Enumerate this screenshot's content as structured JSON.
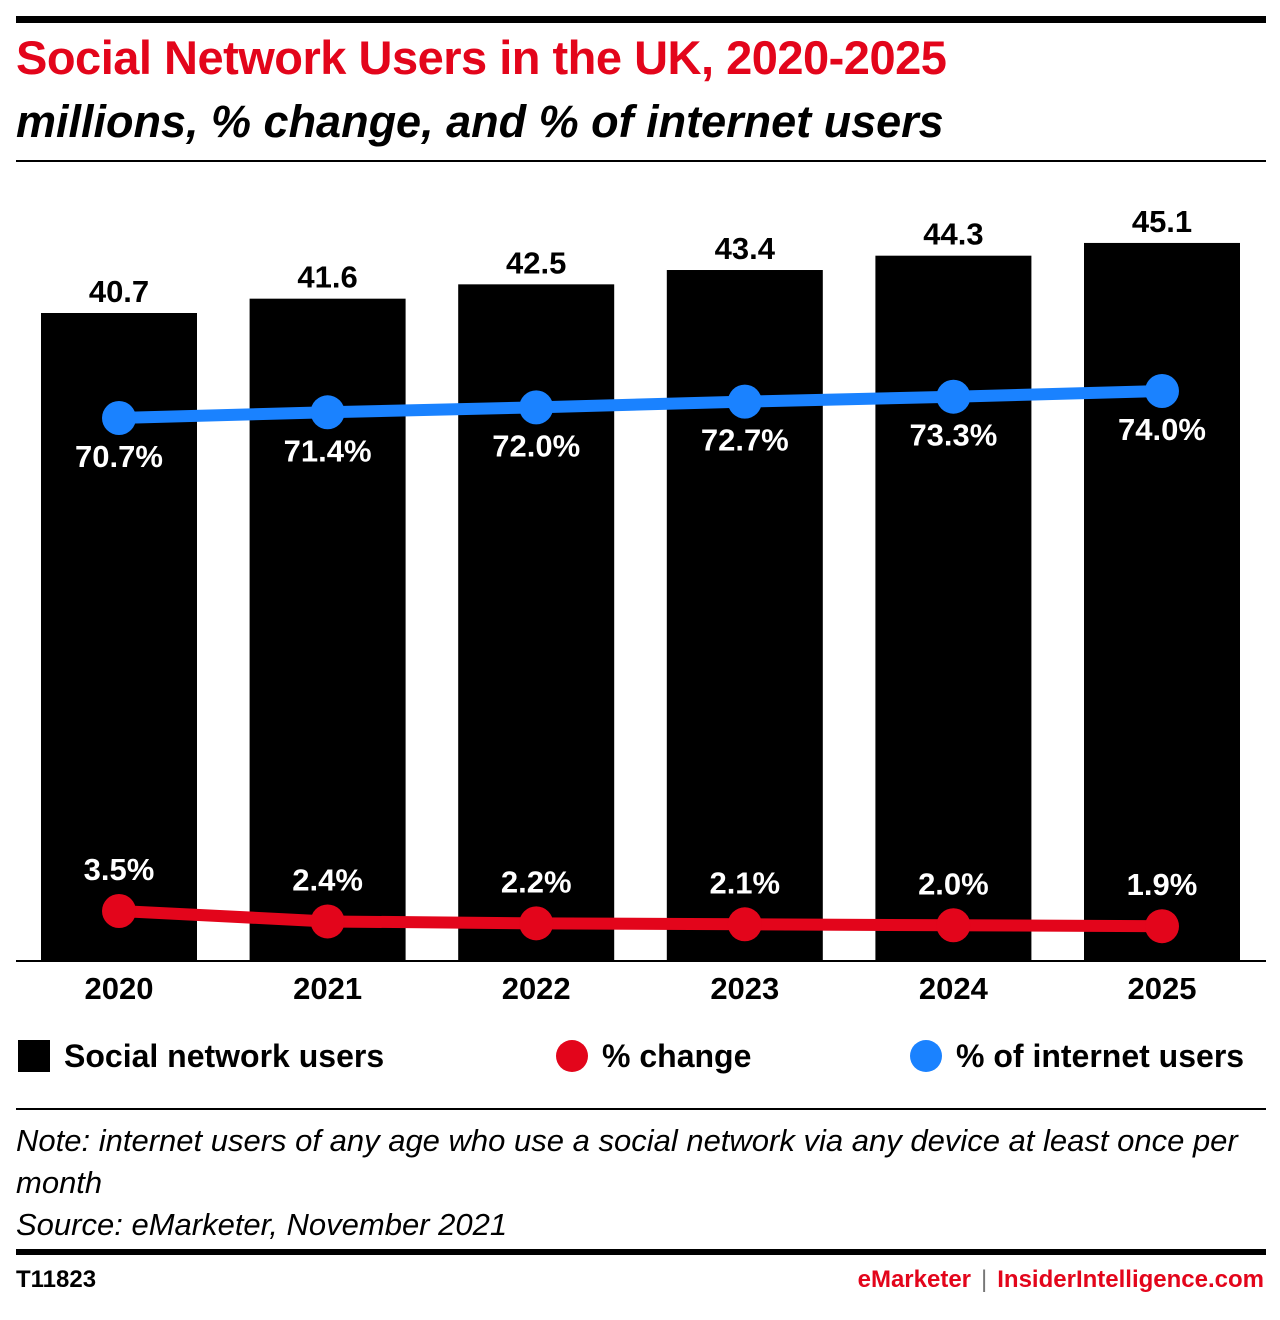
{
  "title": "Social Network Users in the UK, 2020-2025",
  "subtitle": "millions, % change, and % of internet users",
  "chart_data": {
    "type": "bar",
    "categories": [
      "2020",
      "2021",
      "2022",
      "2023",
      "2024",
      "2025"
    ],
    "series": [
      {
        "name": "Social network users",
        "kind": "bar",
        "color": "#000000",
        "values": [
          40.7,
          41.6,
          42.5,
          43.4,
          44.3,
          45.1
        ],
        "labels": [
          "40.7",
          "41.6",
          "42.5",
          "43.4",
          "44.3",
          "45.1"
        ]
      },
      {
        "name": "% change",
        "kind": "line",
        "color": "#e3051b",
        "values": [
          3.5,
          2.4,
          2.2,
          2.1,
          2.0,
          1.9
        ],
        "labels": [
          "3.5%",
          "2.4%",
          "2.2%",
          "2.1%",
          "2.0%",
          "1.9%"
        ]
      },
      {
        "name": "% of internet users",
        "kind": "line",
        "color": "#1a82ff",
        "values": [
          70.7,
          71.4,
          72.0,
          72.7,
          73.3,
          74.0
        ],
        "labels": [
          "70.7%",
          "71.4%",
          "72.0%",
          "72.7%",
          "73.3%",
          "74.0%"
        ]
      }
    ],
    "legend_position": "bottom",
    "grid": false
  },
  "legend": {
    "bars": "Social network users",
    "change": "% change",
    "share": "% of internet users"
  },
  "note_line1": "Note: internet users of any age who use a social network via any device at least once per month",
  "source": "Source: eMarketer, November 2021",
  "chart_id": "T11823",
  "brand": {
    "left": "eMarketer",
    "separator": "|",
    "right": "InsiderIntelligence.com"
  }
}
